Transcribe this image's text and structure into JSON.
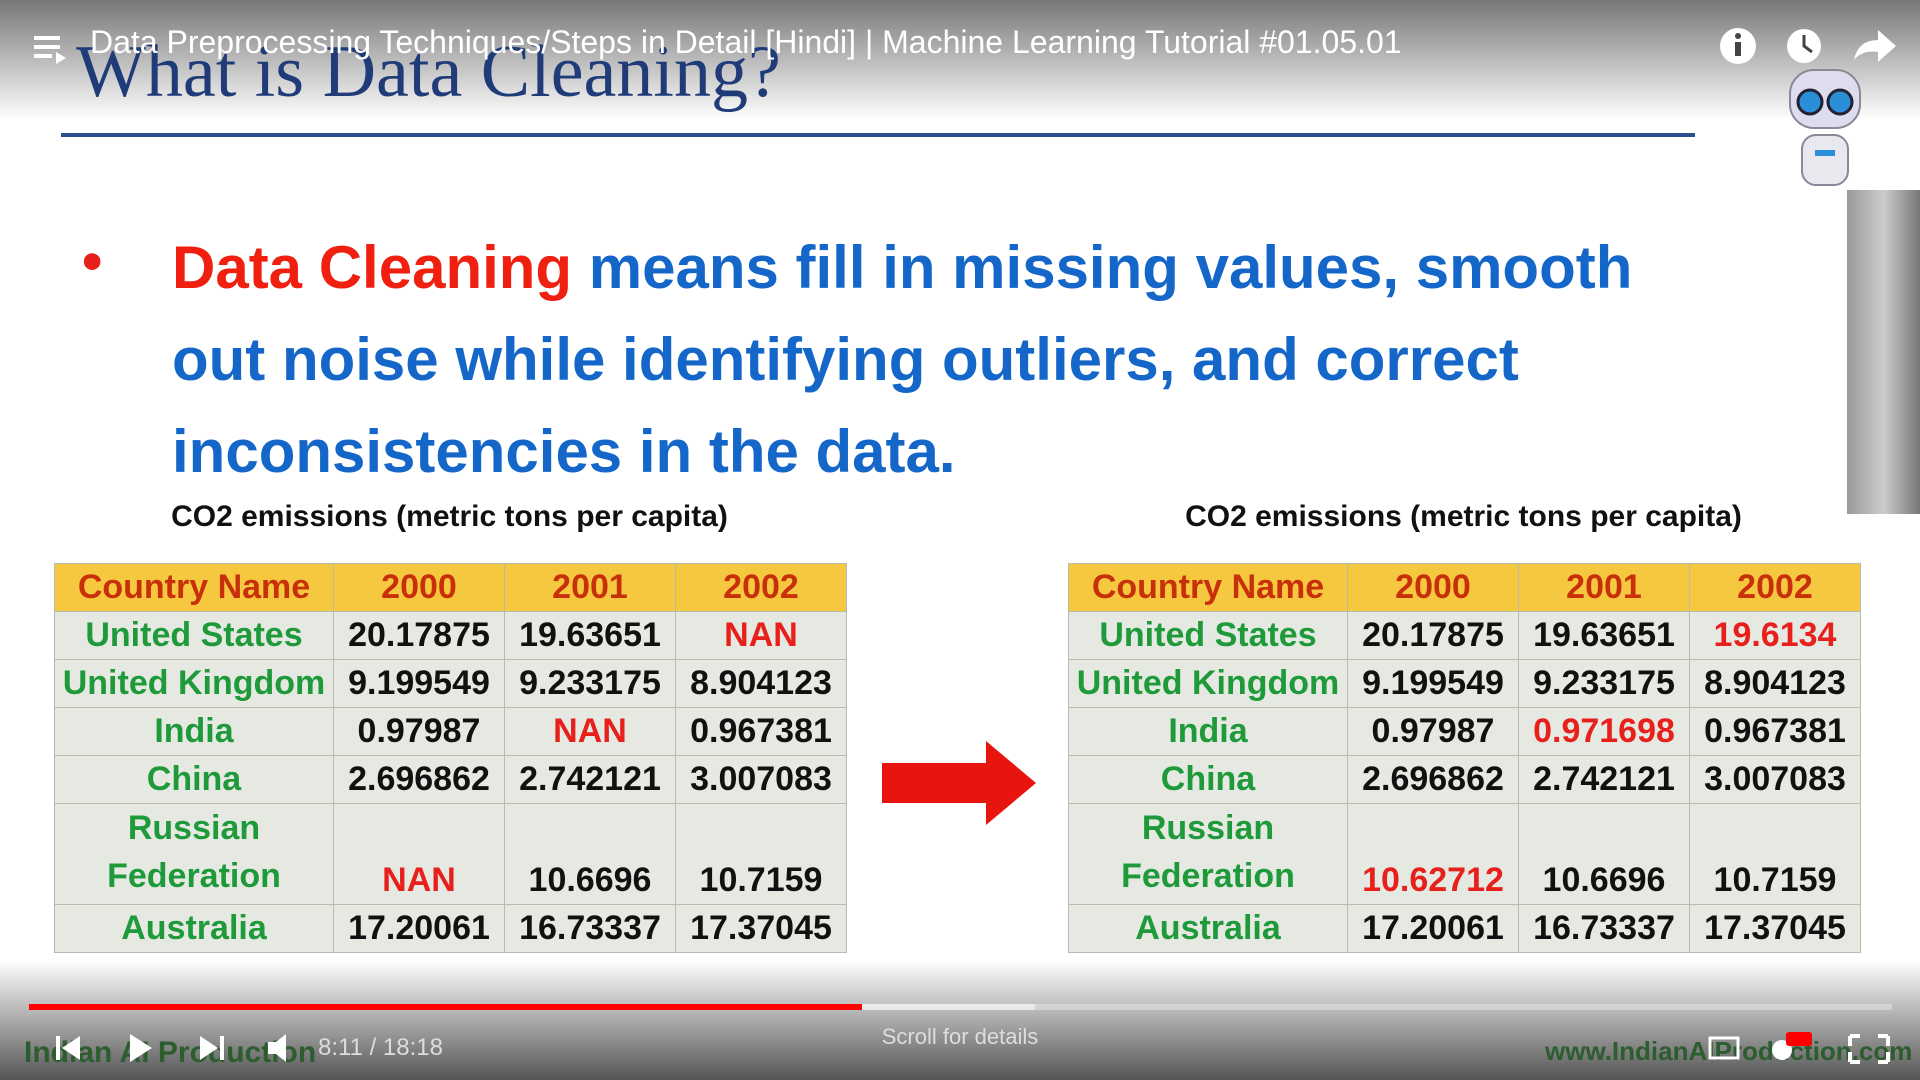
{
  "player": {
    "video_title": "Data Preprocessing Techniques/Steps in Detail [Hindi] | Machine Learning Tutorial #01.05.01",
    "time": "8:11 / 18:18",
    "scroll_hint": "Scroll for details"
  },
  "slide": {
    "title": "What is Data Cleaning?",
    "bullet": {
      "highlight": "Data Cleaning",
      "text": "means fill in missing values, smooth out noise while identifying outliers, and correct inconsistencies in the data."
    },
    "tables": [
      {
        "caption": "CO2 emissions (metric tons per capita)",
        "header": [
          "Country Name",
          "2000",
          "2001",
          "2002"
        ],
        "rows": [
          [
            "United States",
            "20.17875",
            "19.63651",
            {
              "text": "NAN",
              "color": "#e8201c"
            }
          ],
          [
            "United Kingdom",
            "9.199549",
            "9.233175",
            "8.904123"
          ],
          [
            "India",
            "0.97987",
            {
              "text": "NAN",
              "color": "#e8201c"
            },
            "0.967381"
          ],
          [
            "China",
            "2.696862",
            "2.742121",
            "3.007083"
          ],
          [
            "Russian Federation",
            {
              "text": "NAN",
              "color": "#e8201c"
            },
            "10.6696",
            "10.7159"
          ],
          [
            "Australia",
            "17.20061",
            "16.73337",
            "17.37045"
          ]
        ]
      },
      {
        "caption": "CO2 emissions (metric tons per capita)",
        "header": [
          "Country Name",
          "2000",
          "2001",
          "2002"
        ],
        "rows": [
          [
            "United States",
            "20.17875",
            "19.63651",
            {
              "text": "19.6134",
              "color": "#e8201c"
            }
          ],
          [
            "United Kingdom",
            "9.199549",
            "9.233175",
            "8.904123"
          ],
          [
            "India",
            "0.97987",
            {
              "text": "0.971698",
              "color": "#e8201c"
            },
            "0.967381"
          ],
          [
            "China",
            "2.696862",
            "2.742121",
            "3.007083"
          ],
          [
            "Russian Federation",
            {
              "text": "10.62712",
              "color": "#e8201c"
            },
            "10.6696",
            "10.7159"
          ],
          [
            "Australia",
            "17.20061",
            "16.73337",
            "17.37045"
          ]
        ]
      }
    ],
    "watermark_left": "Indian AI Production",
    "watermark_right": "www.IndianAIProduction.com"
  }
}
